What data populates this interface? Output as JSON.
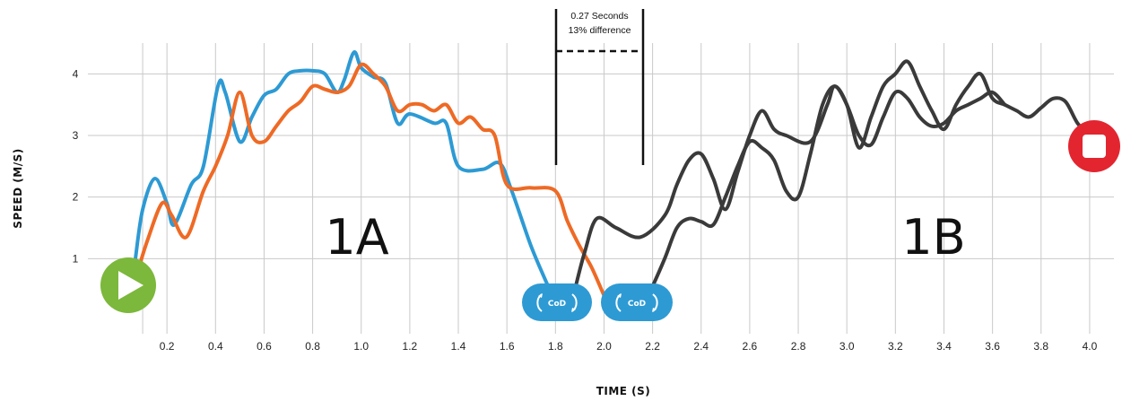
{
  "chart_data": {
    "type": "line",
    "xlabel": "TIME (S)",
    "ylabel": "SPEED (M/S)",
    "xlim": [
      0.0,
      4.1
    ],
    "ylim": [
      0.0,
      4.5
    ],
    "x_ticks": [
      0.2,
      0.4,
      0.6,
      0.8,
      1.0,
      1.2,
      1.4,
      1.6,
      1.8,
      2.0,
      2.2,
      2.4,
      2.6,
      2.8,
      3.0,
      3.2,
      3.4,
      3.6,
      3.8,
      4.0
    ],
    "x_tick_labels": [
      "0.2",
      "0.4",
      "0.6",
      "0.8",
      "1.0",
      "1.2",
      "1.4",
      "1.6",
      "1.8",
      "2.0",
      "2.2",
      "2.4",
      "2.6",
      "2.8",
      "3.0",
      "3.2",
      "3.4",
      "3.6",
      "3.8",
      "4.0"
    ],
    "y_ticks": [
      1,
      2,
      3,
      4
    ],
    "y_tick_labels": [
      "1",
      "2",
      "3",
      "4"
    ],
    "grid": true,
    "series": [
      {
        "color": "#2d9ad4",
        "points": [
          [
            0.07,
            1.0
          ],
          [
            0.1,
            1.8
          ],
          [
            0.15,
            2.3
          ],
          [
            0.2,
            1.9
          ],
          [
            0.23,
            1.55
          ],
          [
            0.3,
            2.2
          ],
          [
            0.35,
            2.5
          ],
          [
            0.41,
            3.8
          ],
          [
            0.44,
            3.7
          ],
          [
            0.5,
            2.9
          ],
          [
            0.55,
            3.3
          ],
          [
            0.6,
            3.65
          ],
          [
            0.65,
            3.75
          ],
          [
            0.7,
            4.0
          ],
          [
            0.75,
            4.05
          ],
          [
            0.8,
            4.05
          ],
          [
            0.85,
            4.0
          ],
          [
            0.9,
            3.7
          ],
          [
            0.93,
            3.9
          ],
          [
            0.97,
            4.35
          ],
          [
            1.0,
            4.1
          ],
          [
            1.05,
            3.95
          ],
          [
            1.1,
            3.85
          ],
          [
            1.15,
            3.2
          ],
          [
            1.2,
            3.35
          ],
          [
            1.3,
            3.2
          ],
          [
            1.35,
            3.2
          ],
          [
            1.4,
            2.5
          ],
          [
            1.5,
            2.45
          ],
          [
            1.57,
            2.55
          ],
          [
            1.62,
            2.1
          ],
          [
            1.7,
            1.2
          ],
          [
            1.77,
            0.55
          ]
        ]
      },
      {
        "color": "#ee6a25",
        "points": [
          [
            0.08,
            0.8
          ],
          [
            0.12,
            1.3
          ],
          [
            0.18,
            1.9
          ],
          [
            0.22,
            1.7
          ],
          [
            0.28,
            1.35
          ],
          [
            0.35,
            2.1
          ],
          [
            0.4,
            2.5
          ],
          [
            0.45,
            3.0
          ],
          [
            0.5,
            3.7
          ],
          [
            0.55,
            3.0
          ],
          [
            0.6,
            2.9
          ],
          [
            0.65,
            3.15
          ],
          [
            0.7,
            3.4
          ],
          [
            0.75,
            3.55
          ],
          [
            0.8,
            3.8
          ],
          [
            0.85,
            3.75
          ],
          [
            0.9,
            3.7
          ],
          [
            0.95,
            3.8
          ],
          [
            1.0,
            4.15
          ],
          [
            1.05,
            4.0
          ],
          [
            1.1,
            3.8
          ],
          [
            1.15,
            3.4
          ],
          [
            1.2,
            3.5
          ],
          [
            1.25,
            3.5
          ],
          [
            1.3,
            3.4
          ],
          [
            1.35,
            3.5
          ],
          [
            1.4,
            3.2
          ],
          [
            1.45,
            3.3
          ],
          [
            1.5,
            3.1
          ],
          [
            1.55,
            3.0
          ],
          [
            1.6,
            2.2
          ],
          [
            1.7,
            2.15
          ],
          [
            1.8,
            2.1
          ],
          [
            1.85,
            1.6
          ],
          [
            1.9,
            1.2
          ],
          [
            1.95,
            0.85
          ],
          [
            2.0,
            0.4
          ]
        ]
      },
      {
        "color": "#3a3a3a",
        "points": [
          [
            1.88,
            0.5
          ],
          [
            1.92,
            1.1
          ],
          [
            1.97,
            1.65
          ],
          [
            2.05,
            1.5
          ],
          [
            2.15,
            1.35
          ],
          [
            2.25,
            1.7
          ],
          [
            2.3,
            2.2
          ],
          [
            2.35,
            2.6
          ],
          [
            2.4,
            2.7
          ],
          [
            2.45,
            2.3
          ],
          [
            2.5,
            1.8
          ],
          [
            2.55,
            2.4
          ],
          [
            2.6,
            3.0
          ],
          [
            2.65,
            3.4
          ],
          [
            2.7,
            3.1
          ],
          [
            2.75,
            3.0
          ],
          [
            2.85,
            2.9
          ],
          [
            2.92,
            3.5
          ],
          [
            2.95,
            3.8
          ],
          [
            3.0,
            3.5
          ],
          [
            3.05,
            2.8
          ],
          [
            3.1,
            3.3
          ],
          [
            3.15,
            3.8
          ],
          [
            3.2,
            4.0
          ],
          [
            3.25,
            4.2
          ],
          [
            3.3,
            3.8
          ],
          [
            3.35,
            3.4
          ],
          [
            3.4,
            3.1
          ],
          [
            3.45,
            3.5
          ],
          [
            3.5,
            3.8
          ],
          [
            3.55,
            4.0
          ],
          [
            3.6,
            3.6
          ],
          [
            3.65,
            3.5
          ],
          [
            3.7,
            3.4
          ],
          [
            3.75,
            3.3
          ],
          [
            3.8,
            3.45
          ],
          [
            3.85,
            3.6
          ],
          [
            3.9,
            3.55
          ],
          [
            3.95,
            3.2
          ],
          [
            4.0,
            3.0
          ]
        ]
      },
      {
        "color": "#3a3a3a",
        "points": [
          [
            2.2,
            0.55
          ],
          [
            2.25,
            1.0
          ],
          [
            2.3,
            1.5
          ],
          [
            2.35,
            1.65
          ],
          [
            2.4,
            1.6
          ],
          [
            2.45,
            1.55
          ],
          [
            2.5,
            2.0
          ],
          [
            2.55,
            2.5
          ],
          [
            2.6,
            2.9
          ],
          [
            2.65,
            2.8
          ],
          [
            2.7,
            2.6
          ],
          [
            2.75,
            2.1
          ],
          [
            2.8,
            2.0
          ],
          [
            2.85,
            2.7
          ],
          [
            2.9,
            3.5
          ],
          [
            2.95,
            3.8
          ],
          [
            3.0,
            3.5
          ],
          [
            3.05,
            3.0
          ],
          [
            3.1,
            2.85
          ],
          [
            3.15,
            3.3
          ],
          [
            3.2,
            3.7
          ],
          [
            3.25,
            3.6
          ],
          [
            3.3,
            3.3
          ],
          [
            3.35,
            3.15
          ],
          [
            3.4,
            3.2
          ],
          [
            3.45,
            3.4
          ],
          [
            3.5,
            3.5
          ],
          [
            3.55,
            3.6
          ],
          [
            3.6,
            3.7
          ],
          [
            3.65,
            3.5
          ]
        ]
      }
    ],
    "annotations": {
      "segment_a": "1A",
      "segment_b": "1B",
      "interval_line1": "0.27 Seconds",
      "interval_line2": "13% difference",
      "cod_label": "CoD"
    },
    "colors": {
      "blue": "#2d9ad4",
      "orange": "#ee6a25",
      "dark": "#3a3a3a",
      "start_green": "#7cb83b",
      "stop_red": "#e32530",
      "grid": "#c9c9c9"
    },
    "markers": {
      "start_icon": "play-icon",
      "stop_icon": "stop-icon",
      "cod_icon": "change-of-direction-icon"
    }
  }
}
